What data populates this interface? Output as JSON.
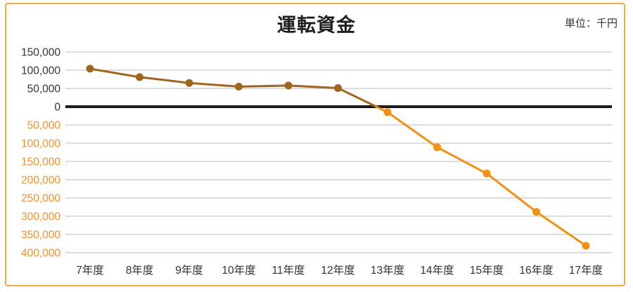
{
  "page": {
    "title": "運転資金",
    "unit_label": "単位：千円"
  },
  "chart_data": {
    "type": "line",
    "title": "運転資金",
    "unit_label": "単位：千円",
    "categories": [
      "7年度",
      "8年度",
      "9年度",
      "10年度",
      "11年度",
      "12年度",
      "13年度",
      "14年度",
      "15年度",
      "16年度",
      "17年度"
    ],
    "series": [
      {
        "name": "運転資金",
        "values": [
          104000,
          81000,
          65000,
          55000,
          58000,
          51000,
          -15000,
          -111000,
          -183000,
          -288000,
          -381000
        ]
      }
    ],
    "ylim": [
      -400000,
      150000
    ],
    "ytick_interval": 50000,
    "negative_ticks_shown_as_absolute": true,
    "grid": true,
    "legend_position": "none",
    "colors": {
      "positive_line": "#a0641c",
      "negative_line": "#f29111",
      "zero_axis": "#1a1a1a",
      "gridline": "#c8c8c8",
      "tick_label_positive": "#333333",
      "tick_label_negative": "#f0912d",
      "x_label": "#333333",
      "border": "#f5a93f"
    }
  }
}
